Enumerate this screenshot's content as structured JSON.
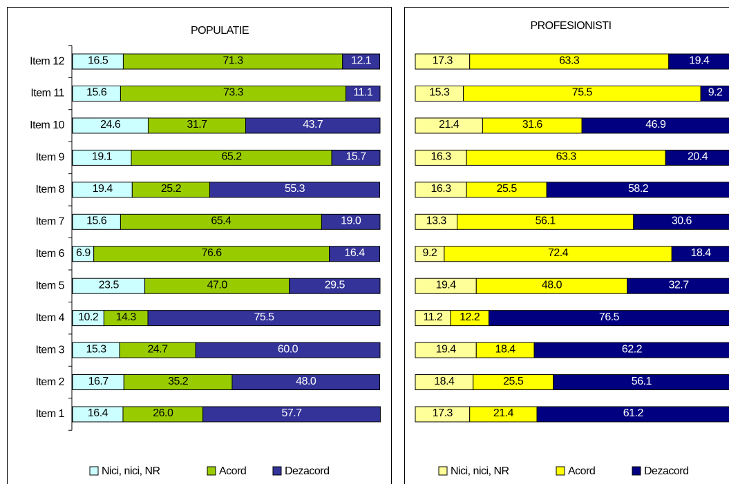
{
  "chart_data": [
    {
      "type": "stacked-bar-horizontal",
      "title": "POPULATIE",
      "categories": [
        "Item 1",
        "Item 2",
        "Item 3",
        "Item 4",
        "Item 5",
        "Item 6",
        "Item 7",
        "Item 8",
        "Item 9",
        "Item 10",
        "Item 11",
        "Item 12"
      ],
      "xlim": [
        0,
        100
      ],
      "series": [
        {
          "name": "Nici, nici, NR",
          "color": "#ccffff",
          "values": [
            16.4,
            16.7,
            15.3,
            10.2,
            23.5,
            6.9,
            15.6,
            19.4,
            19.1,
            24.6,
            15.6,
            16.5
          ],
          "value_labels": [
            "16.4",
            "16.7",
            "15.3",
            "10.2",
            "23.5",
            "6.9",
            "15.6",
            "19.4",
            "19.1",
            "24.6",
            "15.6",
            "16.5"
          ]
        },
        {
          "name": "Acord",
          "color": "#99cc00",
          "values": [
            26.0,
            35.2,
            24.7,
            14.3,
            47.0,
            76.6,
            65.4,
            25.2,
            65.2,
            31.7,
            73.3,
            71.3
          ],
          "value_labels": [
            "26.0",
            "35.2",
            "24.7",
            "14.3",
            "47.0",
            "76.6",
            "65.4",
            "25.2",
            "65.2",
            "31.7",
            "73.3",
            "71.3"
          ]
        },
        {
          "name": "Dezacord",
          "color": "#333399",
          "values": [
            57.7,
            48.0,
            60.0,
            75.5,
            29.5,
            16.4,
            19.0,
            55.3,
            15.7,
            43.7,
            11.1,
            12.1
          ],
          "value_labels": [
            "57.7",
            "48.0",
            "60.0",
            "75.5",
            "29.5",
            "16.4",
            "19.0",
            "55.3",
            "15.7",
            "43.7",
            "11.1",
            "12.1"
          ]
        }
      ]
    },
    {
      "type": "stacked-bar-horizontal",
      "title": "PROFESIONISTI",
      "xlim": [
        0,
        100
      ],
      "series": [
        {
          "name": "Nici, nici, NR",
          "color": "#ffff99",
          "values": [
            17.3,
            18.4,
            19.4,
            11.2,
            19.4,
            9.2,
            13.3,
            16.3,
            16.3,
            21.4,
            15.3,
            17.3
          ],
          "value_labels": [
            "17.3",
            "18.4",
            "19.4",
            "11.2",
            "19.4",
            "9.2",
            "13.3",
            "16.3",
            "16.3",
            "21.4",
            "15.3",
            "17.3"
          ]
        },
        {
          "name": "Acord",
          "color": "#ffff00",
          "values": [
            21.4,
            25.5,
            18.4,
            12.2,
            48.0,
            72.4,
            56.1,
            25.5,
            63.3,
            31.6,
            75.5,
            63.3
          ],
          "value_labels": [
            "21.4",
            "25.5",
            "18.4",
            "12.2",
            "48.0",
            "72.4",
            "56.1",
            "25.5",
            "63.3",
            "31.6",
            "75.5",
            "63.3"
          ]
        },
        {
          "name": "Dezacord",
          "color": "#000080",
          "values": [
            61.2,
            56.1,
            62.2,
            76.5,
            32.7,
            18.4,
            30.6,
            58.2,
            20.4,
            46.9,
            9.2,
            19.4
          ],
          "value_labels": [
            "61.2",
            "56.1",
            "62.2",
            "76.5",
            "32.7",
            "18.4",
            "30.6",
            "58.2",
            "20.4",
            "46.9",
            "9.2",
            "19.4"
          ]
        }
      ]
    }
  ]
}
